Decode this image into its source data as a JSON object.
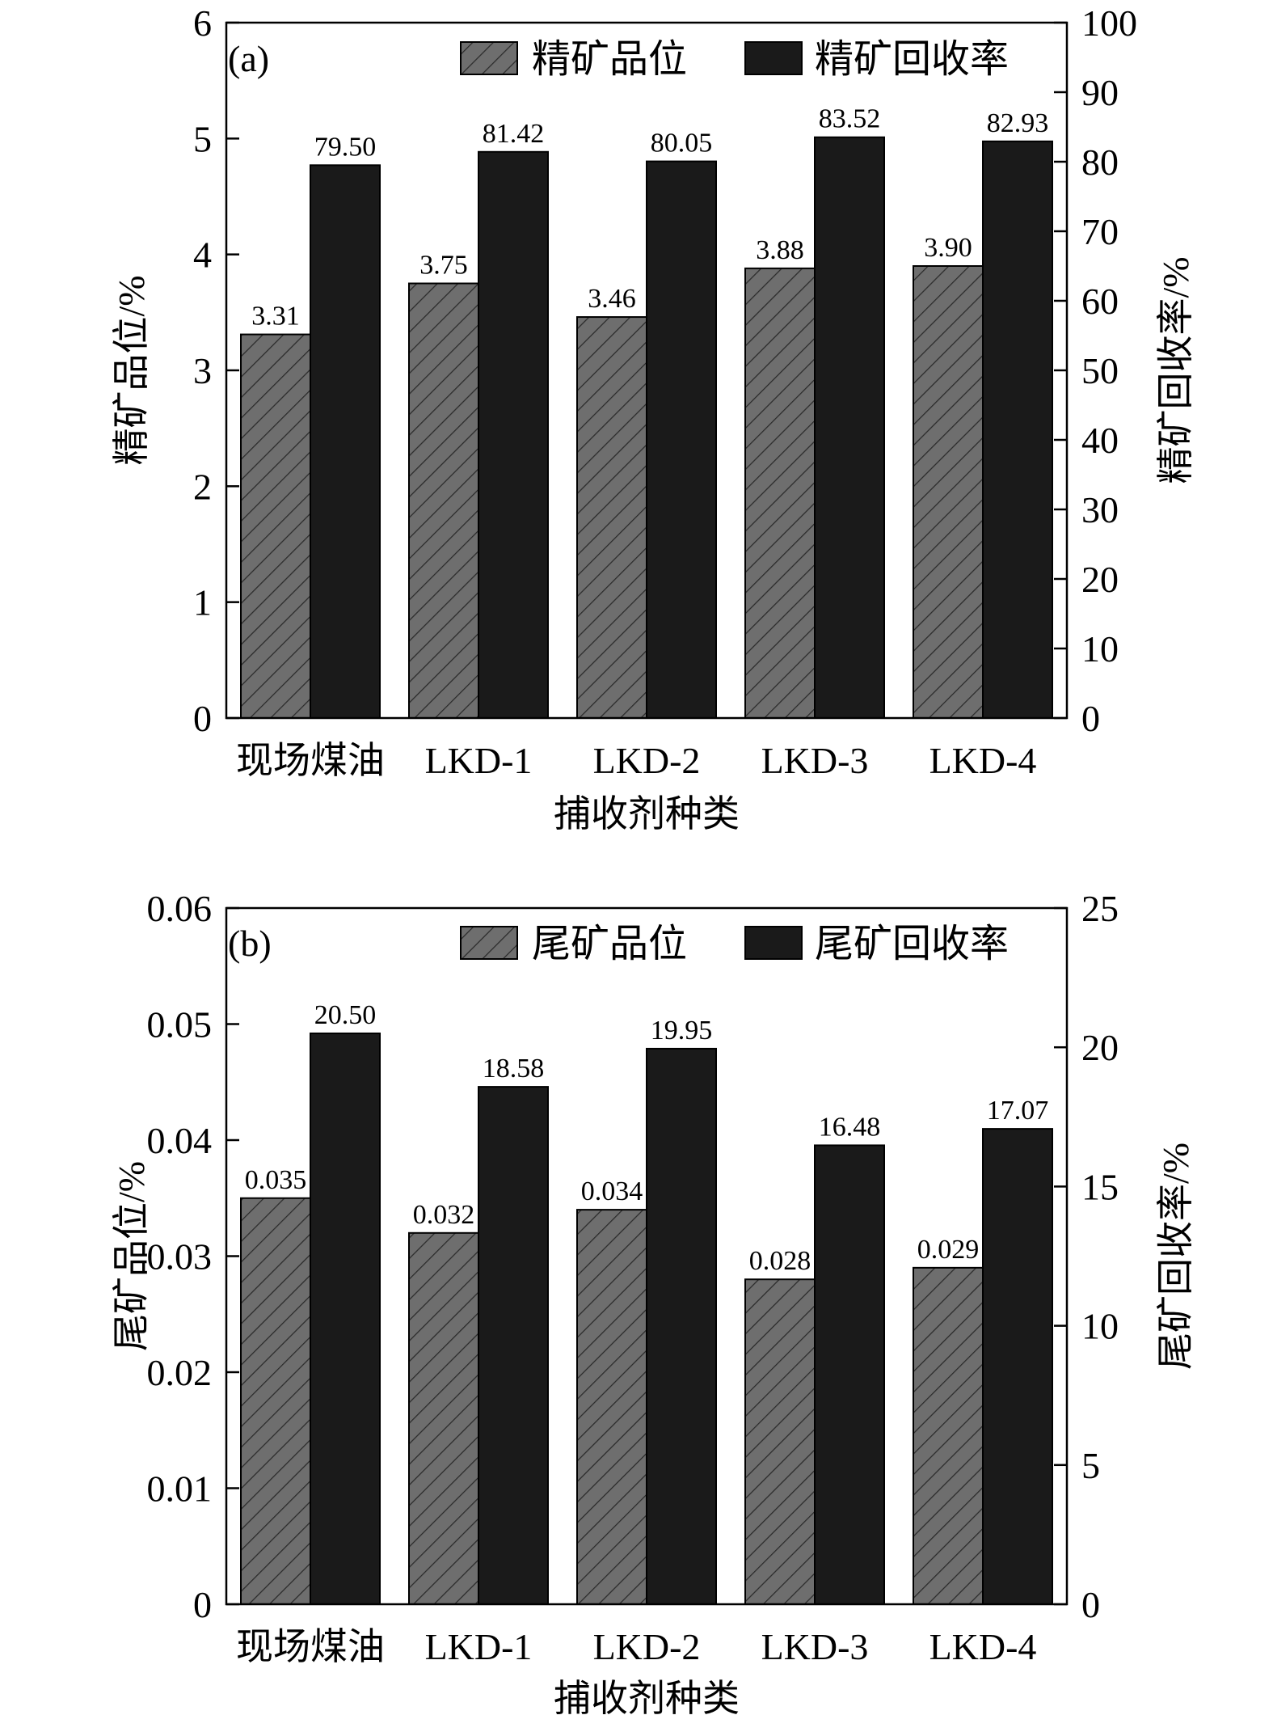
{
  "colors": {
    "grade_bar": "#6e6e6e",
    "hatch": "#2a2a2a",
    "recovery_bar": "#1a1a1a"
  },
  "chart_data": [
    {
      "type": "bar",
      "panel_label": "(a)",
      "categories": [
        "现场煤油",
        "LKD-1",
        "LKD-2",
        "LKD-3",
        "LKD-4"
      ],
      "xlabel": "捕收剂种类",
      "ylabel_left": "精矿品位/%",
      "ylabel_right": "精矿回收率/%",
      "ylim_left": [
        0,
        6
      ],
      "ylim_right": [
        0,
        100
      ],
      "yticks_left": [
        "0",
        "1",
        "2",
        "3",
        "4",
        "5",
        "6"
      ],
      "yticks_right": [
        "0",
        "10",
        "20",
        "30",
        "40",
        "50",
        "60",
        "70",
        "80",
        "90",
        "100"
      ],
      "legend_position": "top-right",
      "series": [
        {
          "name": "精矿品位",
          "axis": "left",
          "values": [
            3.31,
            3.75,
            3.46,
            3.88,
            3.9
          ],
          "labels": [
            "3.31",
            "3.75",
            "3.46",
            "3.88",
            "3.90"
          ]
        },
        {
          "name": "精矿回收率",
          "axis": "right",
          "values": [
            79.5,
            81.42,
            80.05,
            83.52,
            82.93
          ],
          "labels": [
            "79.50",
            "81.42",
            "80.05",
            "83.52",
            "82.93"
          ]
        }
      ]
    },
    {
      "type": "bar",
      "panel_label": "(b)",
      "categories": [
        "现场煤油",
        "LKD-1",
        "LKD-2",
        "LKD-3",
        "LKD-4"
      ],
      "xlabel": "捕收剂种类",
      "ylabel_left": "尾矿品位/%",
      "ylabel_right": "尾矿回收率/%",
      "ylim_left": [
        0,
        0.06
      ],
      "ylim_right": [
        0,
        25
      ],
      "yticks_left": [
        "0",
        "0.01",
        "0.02",
        "0.03",
        "0.04",
        "0.05",
        "0.06"
      ],
      "yticks_right": [
        "0",
        "5",
        "10",
        "15",
        "20",
        "25"
      ],
      "legend_position": "top-right",
      "series": [
        {
          "name": "尾矿品位",
          "axis": "left",
          "values": [
            0.035,
            0.032,
            0.034,
            0.028,
            0.029
          ],
          "labels": [
            "0.035",
            "0.032",
            "0.034",
            "0.028",
            "0.029"
          ]
        },
        {
          "name": "尾矿回收率",
          "axis": "right",
          "values": [
            20.5,
            18.58,
            19.95,
            16.48,
            17.07
          ],
          "labels": [
            "20.50",
            "18.58",
            "19.95",
            "16.48",
            "17.07"
          ]
        }
      ]
    }
  ]
}
